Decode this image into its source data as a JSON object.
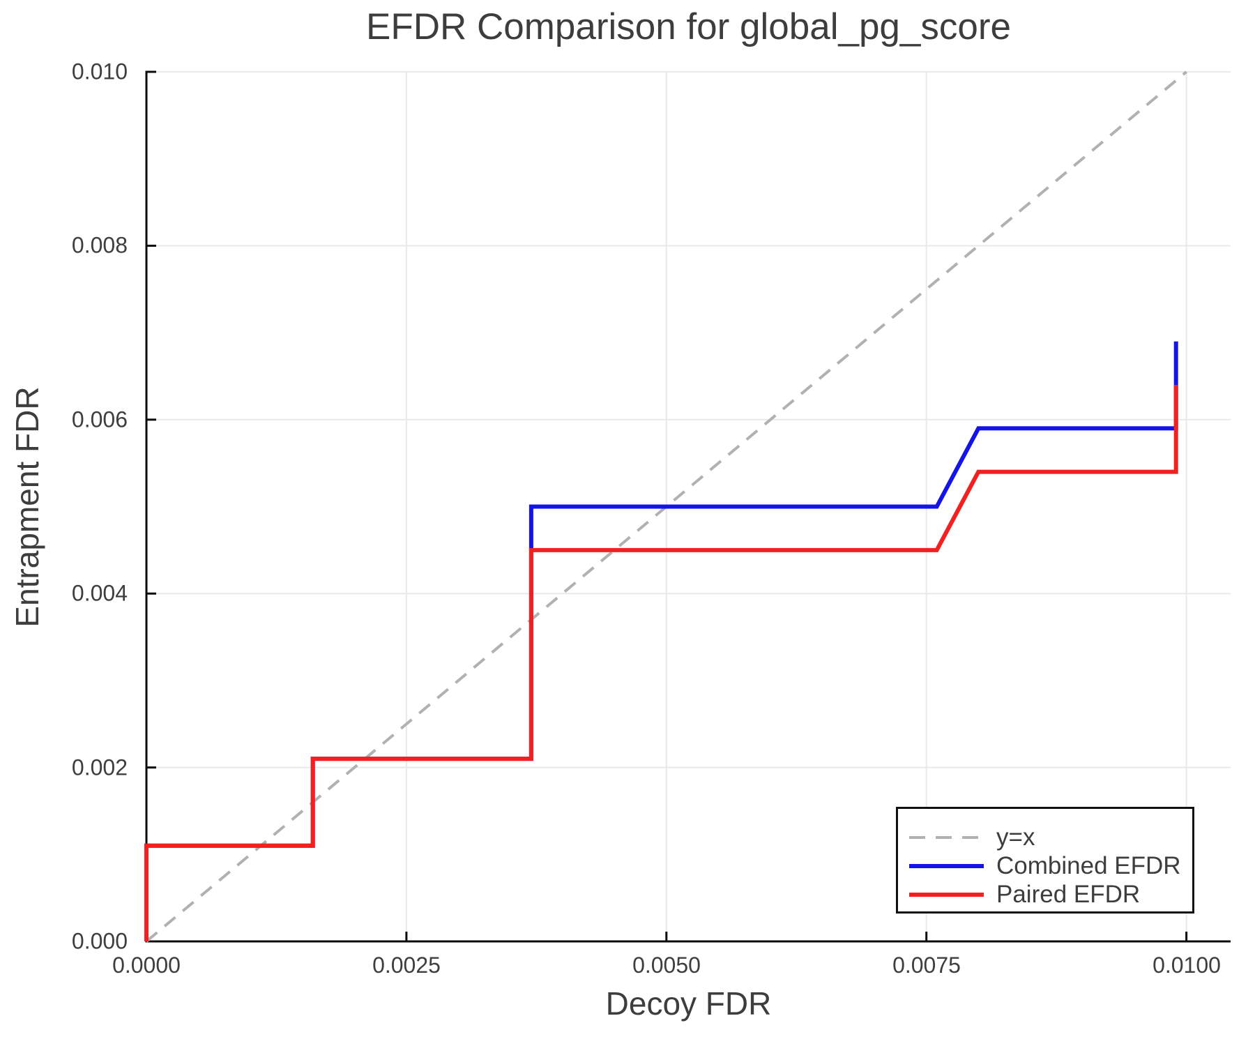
{
  "title": "EFDR Comparison for global_pg_score",
  "axes": {
    "xlabel": "Decoy FDR",
    "ylabel": "Entrapment FDR",
    "x_ticks": [
      "0.0000",
      "0.0025",
      "0.0050",
      "0.0075",
      "0.0100"
    ],
    "y_ticks": [
      "0.010",
      "0.008",
      "0.006",
      "0.004",
      "0.002",
      "0.000"
    ]
  },
  "legend": {
    "items": [
      {
        "label": "y=x",
        "color": "#b1b1b1",
        "style": "dashed"
      },
      {
        "label": "Combined EFDR",
        "color": "#1414e8",
        "style": "solid"
      },
      {
        "label": "Paired EFDR",
        "color": "#f42020",
        "style": "solid"
      }
    ]
  },
  "colors": {
    "background": "#ffffff",
    "grid": "#e9e9e9",
    "spine": "#0d0d0d",
    "text": "#3d3d3d",
    "identity_line": "#b1b1b1",
    "combined": "#1414e8",
    "paired": "#f42020"
  },
  "chart_data": {
    "type": "line",
    "title": "EFDR Comparison for global_pg_score",
    "xlabel": "Decoy FDR",
    "ylabel": "Entrapment FDR",
    "xlim": [
      0,
      0.0104
    ],
    "ylim": [
      0,
      0.01
    ],
    "x_tick_values": [
      0,
      0.0025,
      0.005,
      0.0075,
      0.01
    ],
    "y_tick_values": [
      0,
      0.002,
      0.004,
      0.006,
      0.008,
      0.01
    ],
    "grid": true,
    "legend_position": "bottom-right",
    "reference_line": {
      "name": "y=x",
      "style": "dashed",
      "color": "#b1b1b1",
      "points": [
        [
          0,
          0
        ],
        [
          0.01,
          0.01
        ]
      ]
    },
    "series": [
      {
        "name": "Combined EFDR",
        "color": "#1414e8",
        "style": "solid",
        "points": [
          [
            0,
            0
          ],
          [
            0,
            0.0011
          ],
          [
            0.0016,
            0.0011
          ],
          [
            0.0016,
            0.0021
          ],
          [
            0.0037,
            0.0021
          ],
          [
            0.0037,
            0.005
          ],
          [
            0.0076,
            0.005
          ],
          [
            0.008,
            0.0059
          ],
          [
            0.0099,
            0.0059
          ],
          [
            0.0099,
            0.0069
          ]
        ]
      },
      {
        "name": "Paired EFDR",
        "color": "#f42020",
        "style": "solid",
        "points": [
          [
            0,
            0
          ],
          [
            0,
            0.0011
          ],
          [
            0.0016,
            0.0011
          ],
          [
            0.0016,
            0.0021
          ],
          [
            0.0037,
            0.0021
          ],
          [
            0.0037,
            0.0045
          ],
          [
            0.0076,
            0.0045
          ],
          [
            0.008,
            0.0054
          ],
          [
            0.0099,
            0.0054
          ],
          [
            0.0099,
            0.0064
          ]
        ]
      }
    ]
  }
}
